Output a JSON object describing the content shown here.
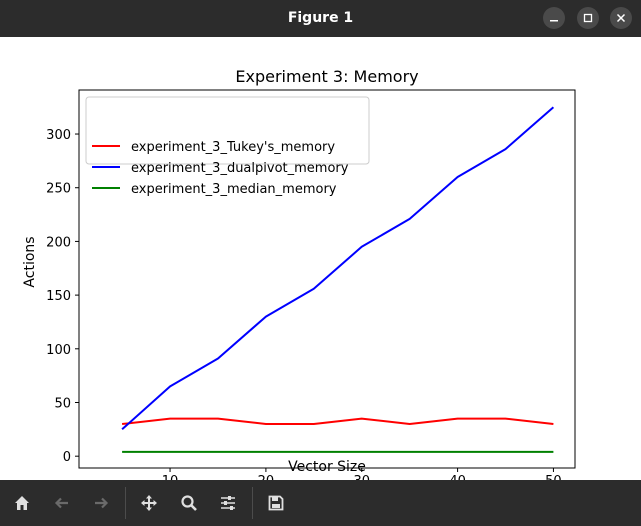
{
  "window": {
    "title": "Figure 1",
    "controls": [
      "minimize",
      "maximize",
      "close"
    ]
  },
  "toolbar": {
    "buttons": [
      {
        "name": "home",
        "icon": "home-icon",
        "enabled": true
      },
      {
        "name": "back",
        "icon": "arrow-left-icon",
        "enabled": false
      },
      {
        "name": "forward",
        "icon": "arrow-right-icon",
        "enabled": false
      },
      {
        "name": "pan",
        "icon": "move-icon",
        "enabled": true
      },
      {
        "name": "zoom",
        "icon": "zoom-icon",
        "enabled": true
      },
      {
        "name": "configure",
        "icon": "sliders-icon",
        "enabled": true
      },
      {
        "name": "save",
        "icon": "save-icon",
        "enabled": true
      }
    ]
  },
  "chart_data": {
    "type": "line",
    "title": "Experiment 3: Memory",
    "xlabel": "Vector Size",
    "ylabel": "Actions",
    "x": [
      5,
      10,
      15,
      20,
      25,
      30,
      35,
      40,
      45,
      50
    ],
    "xlim": [
      0.5,
      52.25
    ],
    "ylim": [
      -11,
      341
    ],
    "xticks": [
      10,
      20,
      30,
      40,
      50
    ],
    "yticks": [
      0,
      50,
      100,
      150,
      200,
      250,
      300
    ],
    "grid": false,
    "legend_position": "top-left",
    "series": [
      {
        "name": "experiment_3_Tukey's_memory",
        "color": "#ff0000",
        "values": [
          30,
          35,
          35,
          30,
          30,
          35,
          30,
          35,
          35,
          30
        ]
      },
      {
        "name": "experiment_3_dualpivot_memory",
        "color": "#0000ff",
        "values": [
          25,
          65,
          91,
          130,
          156,
          195,
          221,
          260,
          286,
          325
        ]
      },
      {
        "name": "experiment_3_median_memory",
        "color": "#008000",
        "values": [
          4,
          4,
          4,
          4,
          4,
          4,
          4,
          4,
          4,
          4
        ]
      }
    ]
  }
}
